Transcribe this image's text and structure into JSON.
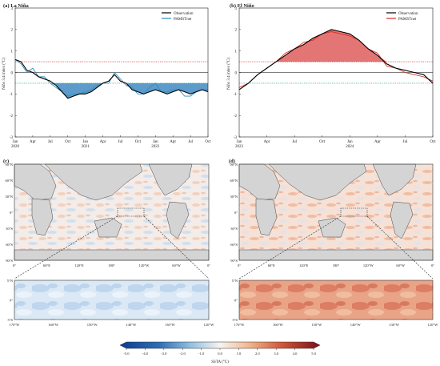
{
  "chart_data": [
    {
      "type": "line",
      "panel_label": "(a) La Niña",
      "ylabel": "Niño 3.4 index (°C)",
      "ylim": [
        -3,
        3
      ],
      "yticks": [
        -3,
        -2,
        -1,
        0,
        1,
        2,
        3
      ],
      "xlim": [
        0,
        33
      ],
      "xticks": [
        {
          "x": 0,
          "label": "Jan",
          "year": "2020"
        },
        {
          "x": 3,
          "label": "Apr",
          "year": ""
        },
        {
          "x": 6,
          "label": "Jul",
          "year": ""
        },
        {
          "x": 9,
          "label": "Oct",
          "year": ""
        },
        {
          "x": 12,
          "label": "Jan",
          "year": "2021"
        },
        {
          "x": 15,
          "label": "Apr",
          "year": ""
        },
        {
          "x": 18,
          "label": "Jul",
          "year": ""
        },
        {
          "x": 21,
          "label": "Oct",
          "year": ""
        },
        {
          "x": 24,
          "label": "Jan",
          "year": "2022"
        },
        {
          "x": 27,
          "label": "Apr",
          "year": ""
        },
        {
          "x": 30,
          "label": "Jul",
          "year": ""
        },
        {
          "x": 33,
          "label": "Oct",
          "year": ""
        }
      ],
      "thresholds": [
        0.5,
        -0.5
      ],
      "fill": "below",
      "fill_color": "#4a90c4",
      "legend": "top-right",
      "series": [
        {
          "name": "Observation",
          "color": "#000000",
          "values": [
            0.6,
            0.5,
            0.1,
            0.0,
            -0.2,
            -0.3,
            -0.4,
            -0.6,
            -0.9,
            -1.2,
            -1.1,
            -1.0,
            -1.0,
            -0.9,
            -0.7,
            -0.5,
            -0.4,
            -0.1,
            -0.4,
            -0.5,
            -0.8,
            -0.9,
            -1.0,
            -0.9,
            -0.8,
            -0.9,
            -1.0,
            -0.9,
            -0.8,
            -0.9,
            -1.0,
            -0.9,
            -0.8,
            -0.9
          ]
        },
        {
          "name": "PAMSTnet",
          "color": "#2e8ec0",
          "values": [
            0.6,
            0.4,
            0.0,
            0.2,
            -0.2,
            -0.2,
            -0.5,
            -0.7,
            -0.9,
            -1.1,
            -1.0,
            -1.0,
            -0.9,
            -0.8,
            -0.6,
            -0.5,
            -0.5,
            0.0,
            -0.3,
            -0.6,
            -0.7,
            -1.0,
            -1.0,
            -0.7,
            -0.5,
            -0.9,
            -0.9,
            -0.8,
            -0.8,
            -1.1,
            -1.1,
            -0.9,
            -0.8,
            -0.8
          ]
        }
      ]
    },
    {
      "type": "line",
      "panel_label": "(b) El Niño",
      "ylabel": "Niño 3.4 index (°C)",
      "ylim": [
        -3,
        3
      ],
      "yticks": [
        -3,
        -2,
        -1,
        0,
        1,
        2,
        3
      ],
      "xlim": [
        0,
        21
      ],
      "xticks": [
        {
          "x": 0,
          "label": "Jan",
          "year": "2023"
        },
        {
          "x": 3,
          "label": "Apr",
          "year": ""
        },
        {
          "x": 6,
          "label": "Jul",
          "year": ""
        },
        {
          "x": 9,
          "label": "Oct",
          "year": ""
        },
        {
          "x": 12,
          "label": "Jan",
          "year": "2024"
        },
        {
          "x": 15,
          "label": "Apr",
          "year": ""
        },
        {
          "x": 18,
          "label": "Jul",
          "year": ""
        },
        {
          "x": 21,
          "label": "Oct",
          "year": ""
        }
      ],
      "thresholds": [
        0.5,
        -0.5
      ],
      "fill": "above",
      "fill_color": "#e06666",
      "legend": "top-right",
      "series": [
        {
          "name": "Observation",
          "color": "#000000",
          "values": [
            -0.8,
            -0.5,
            -0.1,
            0.2,
            0.5,
            0.8,
            1.1,
            1.3,
            1.6,
            1.8,
            2.0,
            1.9,
            1.8,
            1.5,
            1.1,
            0.8,
            0.4,
            0.2,
            0.1,
            0.0,
            -0.1,
            -0.5
          ]
        },
        {
          "name": "PAMSTnet",
          "color": "#d73027",
          "values": [
            -0.7,
            -0.5,
            -0.1,
            0.2,
            0.5,
            0.9,
            1.1,
            1.4,
            1.5,
            1.8,
            1.9,
            1.8,
            1.7,
            1.5,
            1.1,
            0.9,
            0.3,
            0.2,
            0.0,
            -0.1,
            -0.2,
            -0.4
          ]
        }
      ]
    },
    {
      "type": "heatmap",
      "panel_label": "(c)",
      "lat_ticks": [
        "90°N",
        "60°N",
        "30°N",
        "0°",
        "30°S",
        "60°S",
        "90°S"
      ],
      "lon_ticks": [
        "0°",
        "60°E",
        "120°E",
        "180°",
        "120°W",
        "60°W",
        "0°"
      ],
      "anomaly": "mixed"
    },
    {
      "type": "heatmap",
      "panel_label": "(d)",
      "lat_ticks": [
        "90°N",
        "60°N",
        "30°N",
        "0°",
        "30°S",
        "60°S",
        "90°S"
      ],
      "lon_ticks": [
        "0°",
        "60°E",
        "120°E",
        "180°",
        "120°W",
        "60°W",
        "0°"
      ],
      "anomaly": "warm"
    },
    {
      "type": "heatmap",
      "panel_label": "zoom-c",
      "lat_ticks": [
        "5°N",
        "0°",
        "5°S"
      ],
      "lon_ticks": [
        "170°W",
        "160°W",
        "150°W",
        "140°W",
        "130°W",
        "120°W"
      ],
      "anomaly": "cool"
    },
    {
      "type": "heatmap",
      "panel_label": "zoom-d",
      "lat_ticks": [
        "5°N",
        "0°",
        "5°S"
      ],
      "lon_ticks": [
        "170°W",
        "160°W",
        "150°W",
        "140°W",
        "130°W",
        "120°W"
      ],
      "anomaly": "warm"
    }
  ],
  "colorbar": {
    "label": "SSTA (°C)",
    "ticks": [
      "-5.0",
      "-4.0",
      "-3.0",
      "-2.0",
      "-1.0",
      "0.0",
      "1.0",
      "2.0",
      "3.0",
      "4.0",
      "5.0"
    ],
    "range": [
      -5,
      5
    ]
  }
}
